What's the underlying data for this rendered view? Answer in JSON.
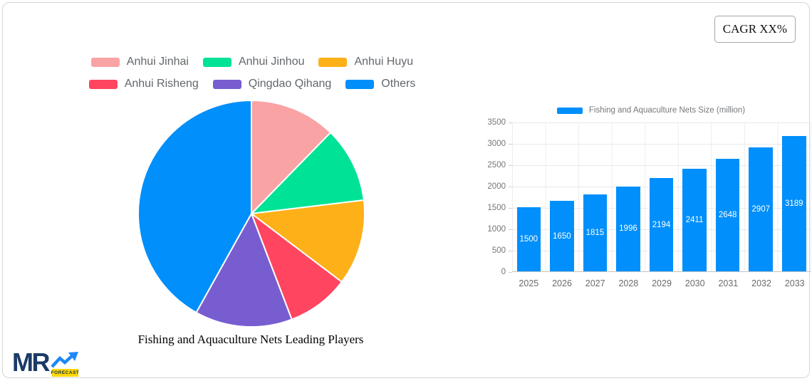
{
  "cagr_label": "CAGR XX%",
  "logo": {
    "text": "MR",
    "badge": "FORECAST"
  },
  "chart_data": [
    {
      "type": "pie",
      "title": "Fishing and Aquaculture Nets Leading Players",
      "labels": [
        "Anhui Jinhai",
        "Anhui Jinhou",
        "Anhui Huyu",
        "Anhui Risheng",
        "Qingdao Qihang",
        "Others"
      ],
      "values_pct": [
        12.3,
        10.8,
        12.2,
        8.9,
        13.9,
        41.9
      ],
      "colors": [
        "#F9A3A4",
        "#00E396",
        "#FEB019",
        "#FF4560",
        "#775DD0",
        "#008FFB"
      ],
      "legend_position": "top",
      "start_angle_deg": 0,
      "direction": "clockwise"
    },
    {
      "type": "bar",
      "legend": "Fishing and Aquaculture Nets Size (million)",
      "categories": [
        "2025",
        "2026",
        "2027",
        "2028",
        "2029",
        "2030",
        "2031",
        "2032",
        "2033"
      ],
      "values": [
        1500,
        1650,
        1815,
        1996,
        2194,
        2411,
        2648,
        2907,
        3189
      ],
      "bar_color": "#008FFB",
      "value_label_color": "#ffffff",
      "ylim": [
        0,
        3500
      ],
      "ytick_step": 500,
      "grid": true,
      "legend_position": "top"
    }
  ]
}
